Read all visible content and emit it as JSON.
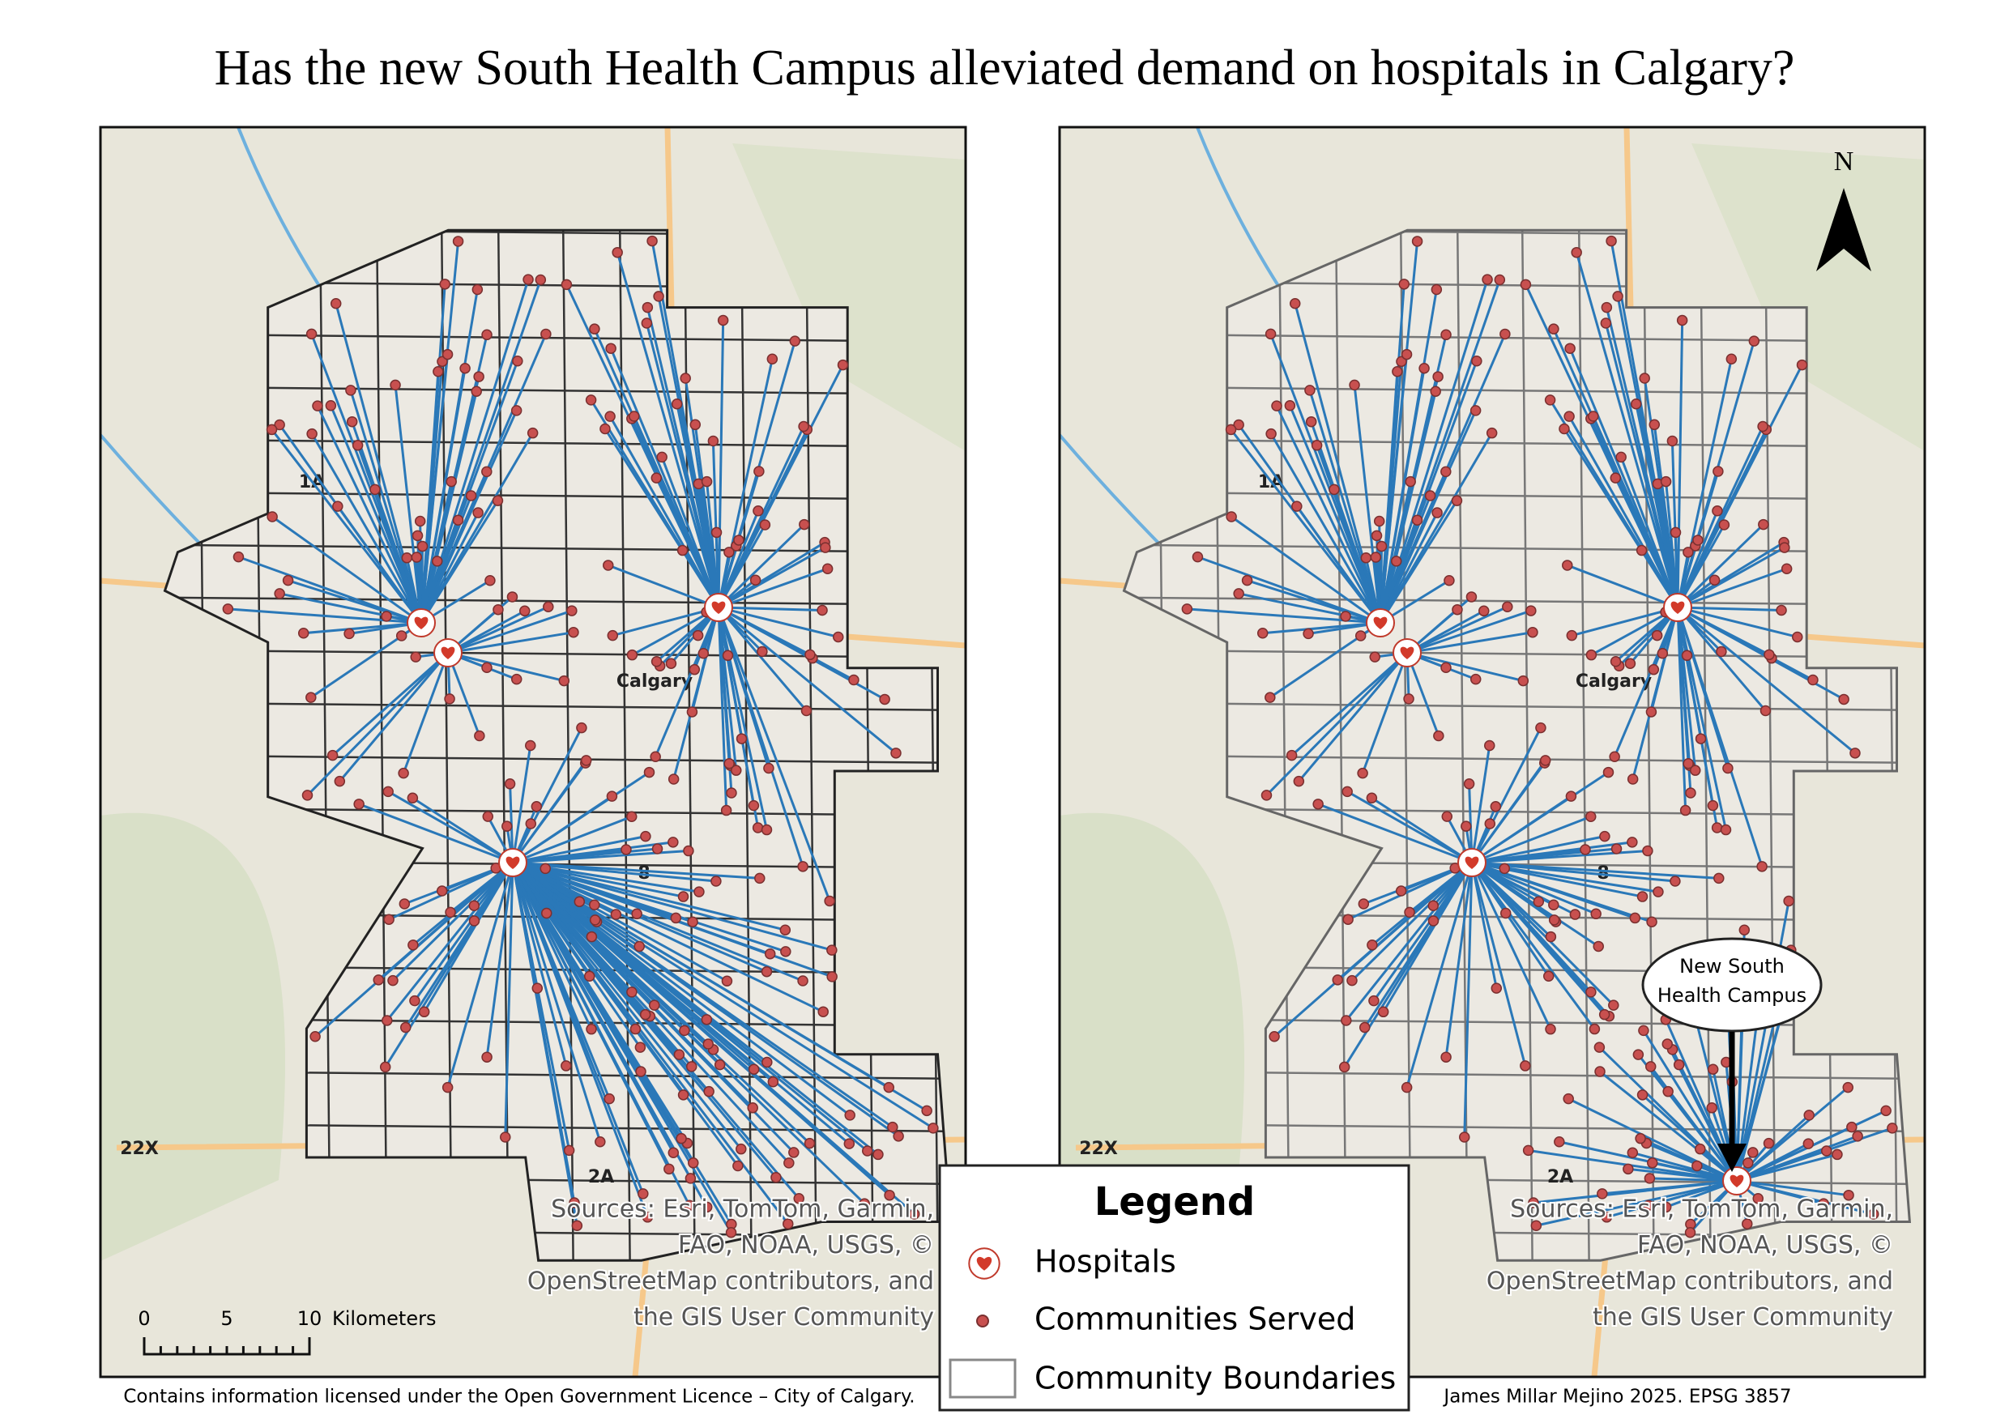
{
  "title": "Has the new South Health Campus alleviated demand on hospitals in Calgary?",
  "map_labels": [
    "Calgary",
    "1A",
    "8",
    "22X",
    "2A"
  ],
  "attribution": [
    "Sources: Esri, TomTom, Garmin,",
    "FAO, NOAA, USGS, ©",
    "OpenStreetMap contributors, and",
    "the GIS User Community"
  ],
  "scale_bar": {
    "ticks": [
      "0",
      "5",
      "10"
    ],
    "unit": "Kilometers"
  },
  "north_arrow": "N",
  "callout": [
    "New South",
    "Health Campus"
  ],
  "legend": {
    "title": "Legend",
    "items": [
      "Hospitals",
      "Communities Served",
      "Community Boundaries"
    ]
  },
  "footer": {
    "left": "Contains information licensed under the Open Government Licence – City of Calgary.",
    "right": "James Millar Mejino 2025. EPSG 3857"
  }
}
